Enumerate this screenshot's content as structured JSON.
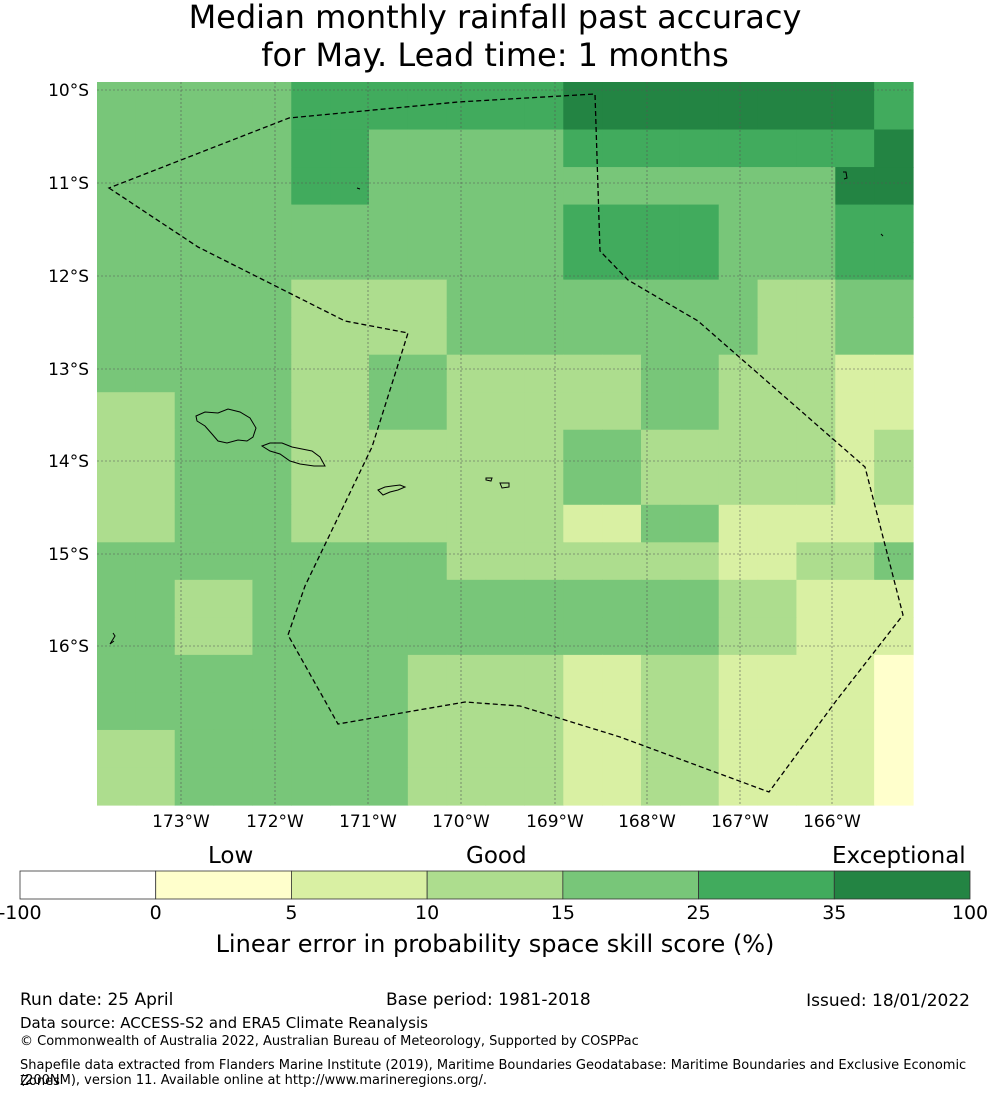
{
  "title": {
    "line1": "Median monthly rainfall past accuracy",
    "line2": "for May. Lead time: 1 months"
  },
  "map": {
    "lat_labels": [
      "10°S",
      "11°S",
      "12°S",
      "13°S",
      "14°S",
      "15°S",
      "16°S"
    ],
    "lon_labels": [
      "173°W",
      "172°W",
      "171°W",
      "170°W",
      "169°W",
      "168°W",
      "167°W",
      "166°W"
    ],
    "grid": [
      [
        3,
        3,
        3,
        3,
        3,
        4,
        4,
        4,
        4,
        4,
        4,
        4,
        5,
        5,
        5,
        5,
        5,
        5,
        5,
        5,
        4
      ],
      [
        3,
        3,
        3,
        3,
        3,
        4,
        4,
        4,
        4,
        4,
        4,
        4,
        5,
        5,
        5,
        5,
        5,
        5,
        5,
        5,
        4
      ],
      [
        3,
        3,
        3,
        3,
        3,
        4,
        4,
        3,
        3,
        3,
        3,
        3,
        4,
        4,
        4,
        4,
        4,
        4,
        4,
        4,
        5
      ],
      [
        3,
        3,
        3,
        3,
        3,
        4,
        4,
        3,
        3,
        3,
        3,
        3,
        3,
        3,
        3,
        3,
        3,
        3,
        3,
        5,
        5
      ],
      [
        3,
        3,
        3,
        3,
        3,
        3,
        3,
        3,
        3,
        3,
        3,
        3,
        4,
        4,
        4,
        4,
        3,
        3,
        3,
        4,
        4
      ],
      [
        3,
        3,
        3,
        3,
        3,
        3,
        3,
        3,
        3,
        3,
        3,
        3,
        4,
        4,
        4,
        4,
        3,
        3,
        3,
        4,
        4
      ],
      [
        3,
        3,
        3,
        3,
        3,
        2,
        2,
        2,
        2,
        3,
        3,
        3,
        3,
        3,
        3,
        3,
        3,
        2,
        2,
        3,
        3
      ],
      [
        3,
        3,
        3,
        3,
        3,
        2,
        2,
        2,
        2,
        3,
        3,
        3,
        3,
        3,
        3,
        3,
        3,
        2,
        2,
        3,
        3
      ],
      [
        3,
        3,
        3,
        3,
        3,
        2,
        2,
        3,
        3,
        2,
        2,
        2,
        2,
        2,
        3,
        3,
        2,
        2,
        2,
        1,
        1
      ],
      [
        2,
        2,
        3,
        3,
        3,
        2,
        2,
        3,
        3,
        2,
        2,
        2,
        2,
        2,
        3,
        3,
        2,
        2,
        2,
        1,
        1
      ],
      [
        2,
        2,
        3,
        3,
        3,
        2,
        2,
        2,
        2,
        2,
        2,
        2,
        3,
        3,
        2,
        2,
        2,
        2,
        2,
        1,
        2
      ],
      [
        2,
        2,
        3,
        3,
        3,
        2,
        2,
        2,
        2,
        2,
        2,
        2,
        3,
        3,
        2,
        2,
        2,
        2,
        2,
        1,
        2
      ],
      [
        2,
        2,
        3,
        3,
        3,
        2,
        2,
        2,
        2,
        2,
        2,
        2,
        1,
        1,
        3,
        3,
        1,
        1,
        1,
        1,
        1
      ],
      [
        3,
        3,
        3,
        3,
        3,
        3,
        3,
        3,
        3,
        2,
        2,
        2,
        2,
        2,
        2,
        2,
        1,
        1,
        2,
        2,
        3
      ],
      [
        3,
        3,
        2,
        2,
        3,
        3,
        3,
        3,
        3,
        3,
        3,
        3,
        3,
        3,
        3,
        3,
        2,
        2,
        1,
        1,
        1
      ],
      [
        3,
        3,
        2,
        2,
        3,
        3,
        3,
        3,
        3,
        3,
        3,
        3,
        3,
        3,
        3,
        3,
        2,
        2,
        1,
        1,
        1
      ],
      [
        3,
        3,
        3,
        3,
        3,
        3,
        3,
        3,
        2,
        2,
        2,
        2,
        1,
        1,
        2,
        2,
        1,
        1,
        1,
        1,
        0
      ],
      [
        3,
        3,
        3,
        3,
        3,
        3,
        3,
        3,
        2,
        2,
        2,
        2,
        1,
        1,
        2,
        2,
        1,
        1,
        1,
        1,
        0
      ],
      [
        2,
        2,
        3,
        3,
        3,
        3,
        3,
        3,
        2,
        2,
        2,
        2,
        1,
        1,
        2,
        2,
        1,
        1,
        1,
        1,
        0
      ],
      [
        2,
        2,
        3,
        3,
        3,
        3,
        3,
        3,
        2,
        2,
        2,
        2,
        1,
        1,
        2,
        2,
        1,
        1,
        1,
        1,
        0
      ]
    ]
  },
  "colorbar": {
    "colors": [
      "#ffffff",
      "#ffffcc",
      "#d9f0a3",
      "#addd8e",
      "#78c679",
      "#41ab5d",
      "#238443"
    ],
    "ticks": [
      "-100",
      "0",
      "5",
      "10",
      "15",
      "25",
      "35",
      "100"
    ],
    "categories": {
      "low": "Low",
      "good": "Good",
      "exceptional": "Exceptional"
    },
    "title": "Linear error in probability space skill score (%)"
  },
  "footer": {
    "run_date": "Run date: 25 April",
    "base_period": "Base period: 1981-2018",
    "issued": "Issued: 18/01/2022",
    "data_source": "Data source: ACCESS-S2 and ERA5 Climate Reanalysis",
    "copyright": "© Commonwealth of Australia 2022, Australian Bureau of Meteorology, Supported by COSPPac",
    "shapefile_line1": "Shapefile data extracted from Flanders Marine Institute (2019), Maritime Boundaries Geodatabase: Maritime Boundaries and Exclusive Economic Zones",
    "shapefile_line2": "(200NM), version 11. Available online at http://www.marineregions.org/."
  }
}
